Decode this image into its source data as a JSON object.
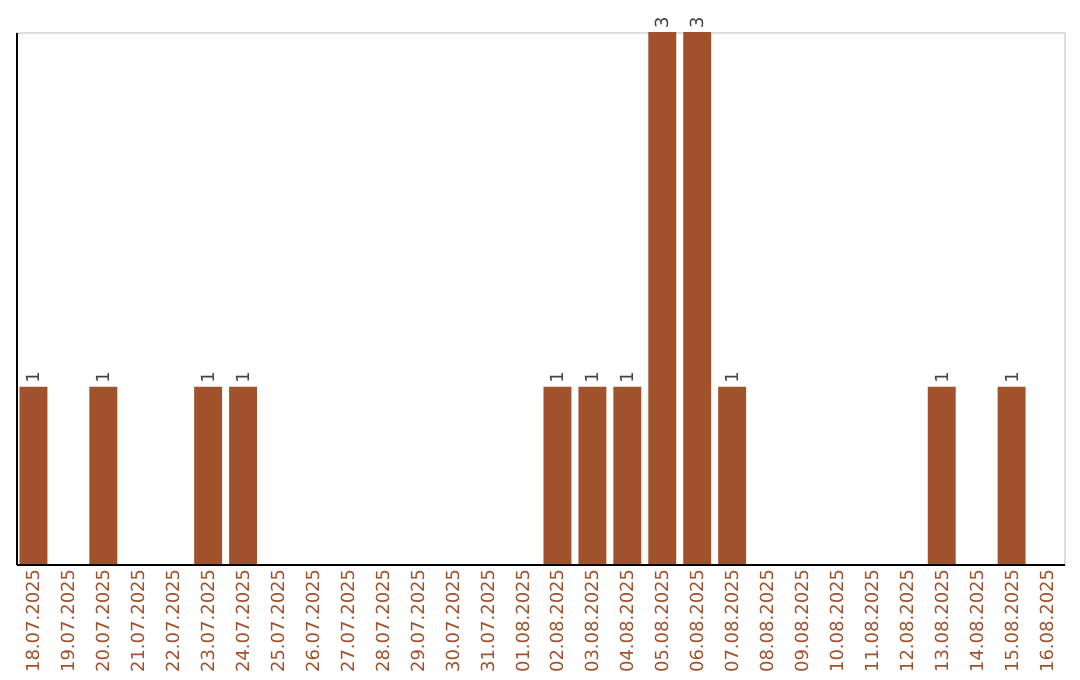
{
  "chart_data": {
    "type": "bar",
    "categories": [
      "18.07.2025",
      "19.07.2025",
      "20.07.2025",
      "21.07.2025",
      "22.07.2025",
      "23.07.2025",
      "24.07.2025",
      "25.07.2025",
      "26.07.2025",
      "27.07.2025",
      "28.07.2025",
      "29.07.2025",
      "30.07.2025",
      "31.07.2025",
      "01.08.2025",
      "02.08.2025",
      "03.08.2025",
      "04.08.2025",
      "05.08.2025",
      "06.08.2025",
      "07.08.2025",
      "08.08.2025",
      "09.08.2025",
      "10.08.2025",
      "11.08.2025",
      "12.08.2025",
      "13.08.2025",
      "14.08.2025",
      "15.08.2025",
      "16.08.2025"
    ],
    "values": [
      1,
      0,
      1,
      0,
      0,
      1,
      1,
      0,
      0,
      0,
      0,
      0,
      0,
      0,
      0,
      1,
      1,
      1,
      3,
      3,
      1,
      0,
      0,
      0,
      0,
      0,
      1,
      0,
      1,
      0
    ],
    "value_labels": [
      "1",
      null,
      "1",
      null,
      null,
      "1",
      "1",
      null,
      null,
      null,
      null,
      null,
      null,
      null,
      null,
      "1",
      "1",
      "1",
      "3",
      "3",
      "1",
      null,
      null,
      null,
      null,
      null,
      "1",
      null,
      "1",
      null
    ],
    "color": "#a0522d",
    "tick_labels": "x",
    "grid": false
  }
}
